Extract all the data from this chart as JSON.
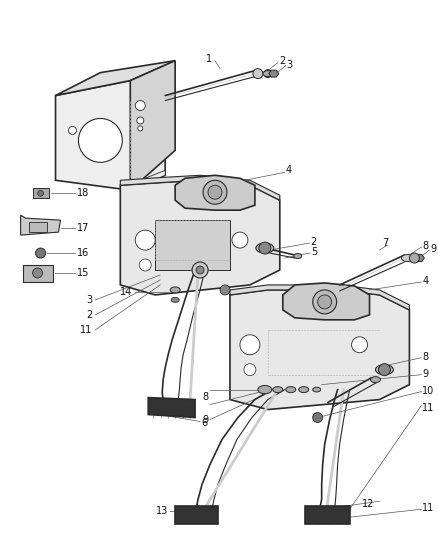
{
  "bg": "#ffffff",
  "lc": "#2a2a2a",
  "lc_light": "#888888",
  "fc_bracket": "#f0f0f0",
  "fc_dark": "#444444",
  "fc_mid": "#999999",
  "fc_light": "#dddddd",
  "fig_w": 4.38,
  "fig_h": 5.33,
  "dpi": 100,
  "label_fs": 7,
  "callout_color": "#555555",
  "callout_lw": 0.5
}
